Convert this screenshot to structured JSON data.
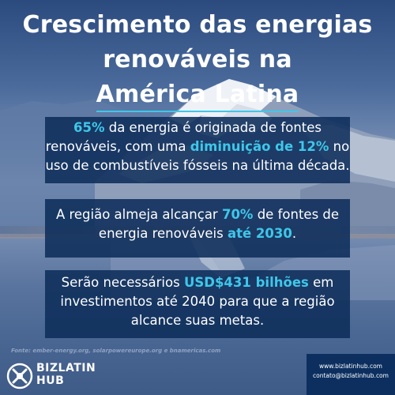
{
  "title": {
    "line1": "Crescimento das energias",
    "line2": "renováveis na",
    "line3": "América Latina"
  },
  "panel1": {
    "a": "65%",
    "b": " da energia é originada de fontes renováveis, com uma ",
    "c": "diminuição de 12%",
    "d": " no uso de combustíveis fósseis na última década."
  },
  "panel2": {
    "a": "A região almeja alcançar ",
    "b": "70%",
    "c": " de fontes de energia renováveis ",
    "d": "até 2030",
    "e": "."
  },
  "panel3": {
    "a": "Serão necessários ",
    "b": "USD$431 bilhões",
    "c": " em investimentos até 2040 para que a região alcance suas metas."
  },
  "source": "Fonte: ember-energy.org, solarpowereurope.org e bnamericas.com",
  "logo": {
    "word1": "BIZLATIN",
    "word2": "HUB",
    "icon": "bizlatinhub-logo-icon"
  },
  "contact": {
    "website": "www.bizlatinhub.com",
    "email": "contato@bizlatinhub.com"
  },
  "colors": {
    "highlight": "#3ec7ea",
    "panel": "#0e2e5a",
    "contact_box": "#0c2f60"
  }
}
